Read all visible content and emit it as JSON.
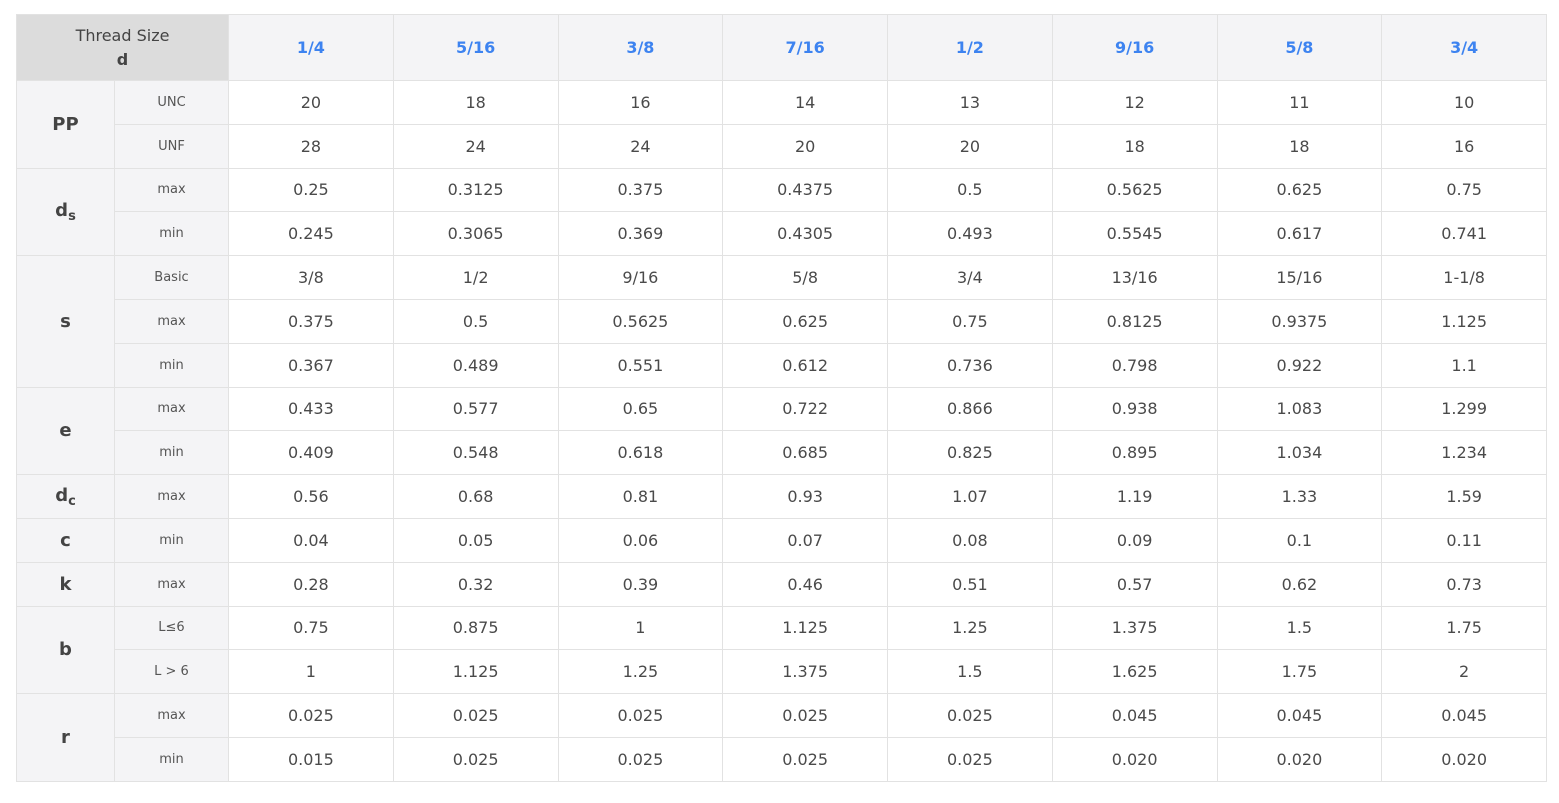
{
  "header": {
    "corner_line1": "Thread Size",
    "corner_line2": "d",
    "sizes": [
      "1/4",
      "5/16",
      "3/8",
      "7/16",
      "1/2",
      "9/16",
      "5/8",
      "3/4"
    ]
  },
  "groups": [
    {
      "symbol": "PP",
      "subscript": "",
      "rows": [
        {
          "label": "UNC",
          "values": [
            "20",
            "18",
            "16",
            "14",
            "13",
            "12",
            "11",
            "10"
          ]
        },
        {
          "label": "UNF",
          "values": [
            "28",
            "24",
            "24",
            "20",
            "20",
            "18",
            "18",
            "16"
          ]
        }
      ]
    },
    {
      "symbol": "d",
      "subscript": "s",
      "rows": [
        {
          "label": "max",
          "values": [
            "0.25",
            "0.3125",
            "0.375",
            "0.4375",
            "0.5",
            "0.5625",
            "0.625",
            "0.75"
          ]
        },
        {
          "label": "min",
          "values": [
            "0.245",
            "0.3065",
            "0.369",
            "0.4305",
            "0.493",
            "0.5545",
            "0.617",
            "0.741"
          ]
        }
      ]
    },
    {
      "symbol": "s",
      "subscript": "",
      "rows": [
        {
          "label": "Basic",
          "values": [
            "3/8",
            "1/2",
            "9/16",
            "5/8",
            "3/4",
            "13/16",
            "15/16",
            "1-1/8"
          ]
        },
        {
          "label": "max",
          "values": [
            "0.375",
            "0.5",
            "0.5625",
            "0.625",
            "0.75",
            "0.8125",
            "0.9375",
            "1.125"
          ]
        },
        {
          "label": "min",
          "values": [
            "0.367",
            "0.489",
            "0.551",
            "0.612",
            "0.736",
            "0.798",
            "0.922",
            "1.1"
          ]
        }
      ]
    },
    {
      "symbol": "e",
      "subscript": "",
      "rows": [
        {
          "label": "max",
          "values": [
            "0.433",
            "0.577",
            "0.65",
            "0.722",
            "0.866",
            "0.938",
            "1.083",
            "1.299"
          ]
        },
        {
          "label": "min",
          "values": [
            "0.409",
            "0.548",
            "0.618",
            "0.685",
            "0.825",
            "0.895",
            "1.034",
            "1.234"
          ]
        }
      ]
    },
    {
      "symbol": "d",
      "subscript": "c",
      "rows": [
        {
          "label": "max",
          "values": [
            "0.56",
            "0.68",
            "0.81",
            "0.93",
            "1.07",
            "1.19",
            "1.33",
            "1.59"
          ]
        }
      ]
    },
    {
      "symbol": "c",
      "subscript": "",
      "rows": [
        {
          "label": "min",
          "values": [
            "0.04",
            "0.05",
            "0.06",
            "0.07",
            "0.08",
            "0.09",
            "0.1",
            "0.11"
          ]
        }
      ]
    },
    {
      "symbol": "k",
      "subscript": "",
      "rows": [
        {
          "label": "max",
          "values": [
            "0.28",
            "0.32",
            "0.39",
            "0.46",
            "0.51",
            "0.57",
            "0.62",
            "0.73"
          ]
        }
      ]
    },
    {
      "symbol": "b",
      "subscript": "",
      "rows": [
        {
          "label": "L≤6",
          "values": [
            "0.75",
            "0.875",
            "1",
            "1.125",
            "1.25",
            "1.375",
            "1.5",
            "1.75"
          ]
        },
        {
          "label": "L > 6",
          "values": [
            "1",
            "1.125",
            "1.25",
            "1.375",
            "1.5",
            "1.625",
            "1.75",
            "2"
          ]
        }
      ]
    },
    {
      "symbol": "r",
      "subscript": "",
      "rows": [
        {
          "label": "max",
          "values": [
            "0.025",
            "0.025",
            "0.025",
            "0.025",
            "0.025",
            "0.045",
            "0.045",
            "0.045"
          ]
        },
        {
          "label": "min",
          "values": [
            "0.015",
            "0.025",
            "0.025",
            "0.025",
            "0.025",
            "0.020",
            "0.020",
            "0.020"
          ]
        }
      ]
    }
  ]
}
